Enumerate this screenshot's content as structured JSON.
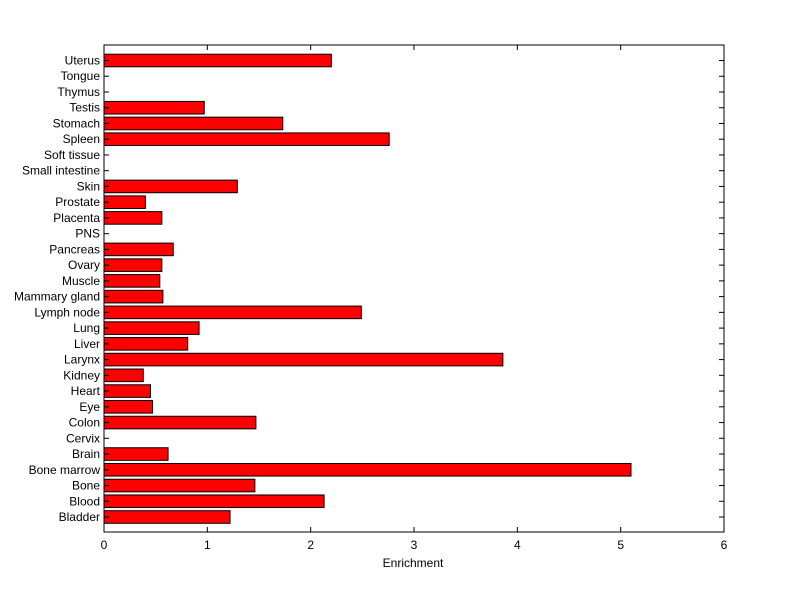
{
  "chart_data": {
    "type": "bar",
    "orientation": "horizontal",
    "title": "",
    "xlabel": "Enrichment",
    "ylabel": "",
    "xlim": [
      0,
      6
    ],
    "xticks": [
      0,
      1,
      2,
      3,
      4,
      5,
      6
    ],
    "grid": false,
    "legend": "none",
    "bar_color": "#ff0000",
    "edge_color": "#000000",
    "categories": [
      "Bladder",
      "Blood",
      "Bone",
      "Bone marrow",
      "Brain",
      "Cervix",
      "Colon",
      "Eye",
      "Heart",
      "Kidney",
      "Larynx",
      "Liver",
      "Lung",
      "Lymph node",
      "Mammary gland",
      "Muscle",
      "Ovary",
      "Pancreas",
      "PNS",
      "Placenta",
      "Prostate",
      "Skin",
      "Small intestine",
      "Soft tissue",
      "Spleen",
      "Stomach",
      "Testis",
      "Thymus",
      "Tongue",
      "Uterus"
    ],
    "values": [
      1.22,
      2.13,
      1.46,
      5.1,
      0.62,
      0,
      1.47,
      0.47,
      0.45,
      0.38,
      3.86,
      0.81,
      0.92,
      2.49,
      0.57,
      0.54,
      0.56,
      0.67,
      0,
      0.56,
      0.4,
      1.29,
      0,
      0,
      2.76,
      1.73,
      0.97,
      0,
      0,
      2.2
    ]
  }
}
